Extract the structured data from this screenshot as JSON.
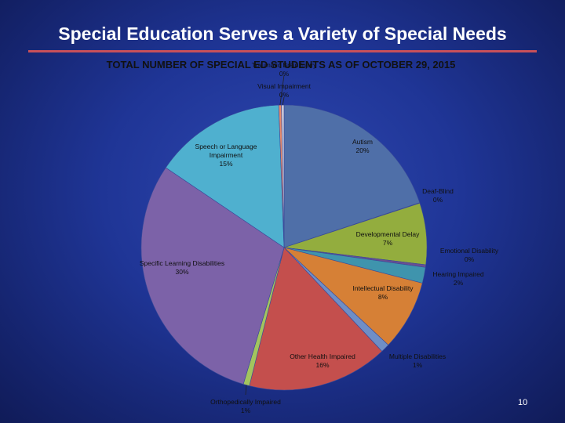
{
  "slide": {
    "title": "Special Education Serves a Variety of Special Needs",
    "page_number": "10"
  },
  "chart_data": {
    "type": "pie",
    "title": "TOTAL NUMBER OF SPECIAL ED STUDENTS AS OF OCTOBER 29, 2015",
    "legend": "none",
    "slices": [
      {
        "name": "Autism",
        "pct_label": "20%",
        "value": 20,
        "color": "#4f6fa8"
      },
      {
        "name": "Deaf-Blind",
        "pct_label": "0%",
        "value": 0.05,
        "color": "#b0483e"
      },
      {
        "name": "Developmental Delay",
        "pct_label": "7%",
        "value": 7,
        "color": "#93ad3e"
      },
      {
        "name": "Emotional Disability",
        "pct_label": "0%",
        "value": 0.3,
        "color": "#6a4f92"
      },
      {
        "name": "Hearing Impaired",
        "pct_label": "2%",
        "value": 1.8,
        "color": "#3f94ad"
      },
      {
        "name": "Intellectual Disability",
        "pct_label": "8%",
        "value": 8,
        "color": "#d68036"
      },
      {
        "name": "Multiple Disabilities",
        "pct_label": "1%",
        "value": 1,
        "color": "#6f8ec6"
      },
      {
        "name": "Other Health Impaired",
        "pct_label": "16%",
        "value": 16,
        "color": "#c44f4d"
      },
      {
        "name": "Orthopedically Impaired",
        "pct_label": "1%",
        "value": 0.7,
        "color": "#a3c45e"
      },
      {
        "name": "Specific Learning Disabilities",
        "pct_label": "30%",
        "value": 30,
        "color": "#7c62a8"
      },
      {
        "name": "Speech or Language Impairment",
        "pct_label": "15%",
        "value": 15,
        "color": "#4fb0cf"
      },
      {
        "name": "Traumatic Brain Injury",
        "pct_label": "0%",
        "value": 0.3,
        "color": "#e88a6a"
      },
      {
        "name": "Visual Impairment",
        "pct_label": "0%",
        "value": 0.3,
        "color": "#c8c8d8"
      }
    ]
  }
}
